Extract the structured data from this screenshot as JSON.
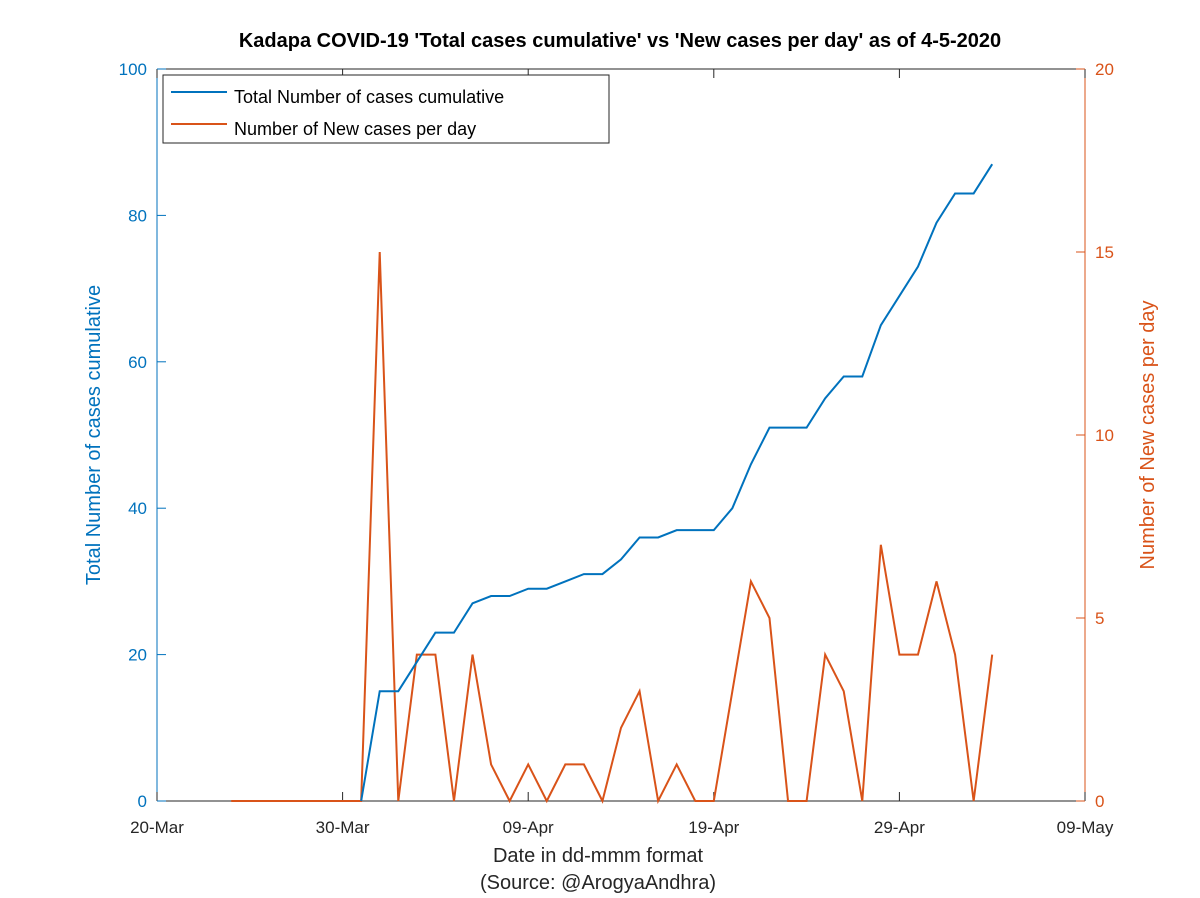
{
  "chart_data": {
    "type": "line",
    "title": "Kadapa COVID-19 'Total cases cumulative' vs 'New cases per day' as of 4-5-2020",
    "xlabel": "Date in dd-mmm format",
    "xlabel2": "(Source: @ArogyaAndhra)",
    "ylabel_left": "Total Number of cases cumulative",
    "ylabel_right": "Number of New cases per day",
    "x_ticks": [
      "20-Mar",
      "30-Mar",
      "09-Apr",
      "19-Apr",
      "29-Apr",
      "09-May"
    ],
    "ylim_left": [
      0,
      100
    ],
    "yticks_left": [
      "0",
      "20",
      "40",
      "60",
      "80",
      "100"
    ],
    "ylim_right": [
      0,
      20
    ],
    "yticks_right": [
      "0",
      "5",
      "10",
      "15",
      "20"
    ],
    "legend_position": "top-left",
    "grid": false,
    "colors": {
      "left_axis": "#0072BD",
      "right_axis": "#D95319",
      "total": "#0072BD",
      "new": "#D95319"
    },
    "series": [
      {
        "name": "Total Number of cases cumulative",
        "axis": "left",
        "color": "#0072BD",
        "x": [
          "31-Mar",
          "01-Apr",
          "02-Apr",
          "03-Apr",
          "04-Apr",
          "05-Apr",
          "06-Apr",
          "07-Apr",
          "08-Apr",
          "09-Apr",
          "10-Apr",
          "11-Apr",
          "12-Apr",
          "13-Apr",
          "14-Apr",
          "15-Apr",
          "16-Apr",
          "17-Apr",
          "18-Apr",
          "19-Apr",
          "20-Apr",
          "21-Apr",
          "22-Apr",
          "23-Apr",
          "24-Apr",
          "25-Apr",
          "26-Apr",
          "27-Apr",
          "28-Apr",
          "29-Apr",
          "30-Apr",
          "01-May",
          "02-May",
          "03-May",
          "04-May"
        ],
        "values": [
          0,
          15,
          15,
          19,
          23,
          23,
          27,
          28,
          28,
          29,
          29,
          30,
          31,
          31,
          33,
          36,
          36,
          37,
          37,
          37,
          40,
          46,
          51,
          51,
          51,
          55,
          58,
          58,
          65,
          69,
          73,
          79,
          83,
          83,
          87
        ]
      },
      {
        "name": "Number of New cases per day",
        "axis": "right",
        "color": "#D95319",
        "x": [
          "24-Mar",
          "25-Mar",
          "26-Mar",
          "27-Mar",
          "28-Mar",
          "29-Mar",
          "30-Mar",
          "31-Mar",
          "01-Apr",
          "02-Apr",
          "03-Apr",
          "04-Apr",
          "05-Apr",
          "06-Apr",
          "07-Apr",
          "08-Apr",
          "09-Apr",
          "10-Apr",
          "11-Apr",
          "12-Apr",
          "13-Apr",
          "14-Apr",
          "15-Apr",
          "16-Apr",
          "17-Apr",
          "18-Apr",
          "19-Apr",
          "20-Apr",
          "21-Apr",
          "22-Apr",
          "23-Apr",
          "24-Apr",
          "25-Apr",
          "26-Apr",
          "27-Apr",
          "28-Apr",
          "29-Apr",
          "30-Apr",
          "01-May",
          "02-May",
          "03-May",
          "04-May"
        ],
        "values": [
          0,
          0,
          0,
          0,
          0,
          0,
          0,
          0,
          15,
          0,
          4,
          4,
          0,
          4,
          1,
          0,
          1,
          0,
          1,
          1,
          0,
          2,
          3,
          0,
          1,
          0,
          0,
          3,
          6,
          5,
          0,
          0,
          4,
          3,
          0,
          7,
          4,
          4,
          6,
          4,
          0,
          4
        ]
      }
    ]
  }
}
